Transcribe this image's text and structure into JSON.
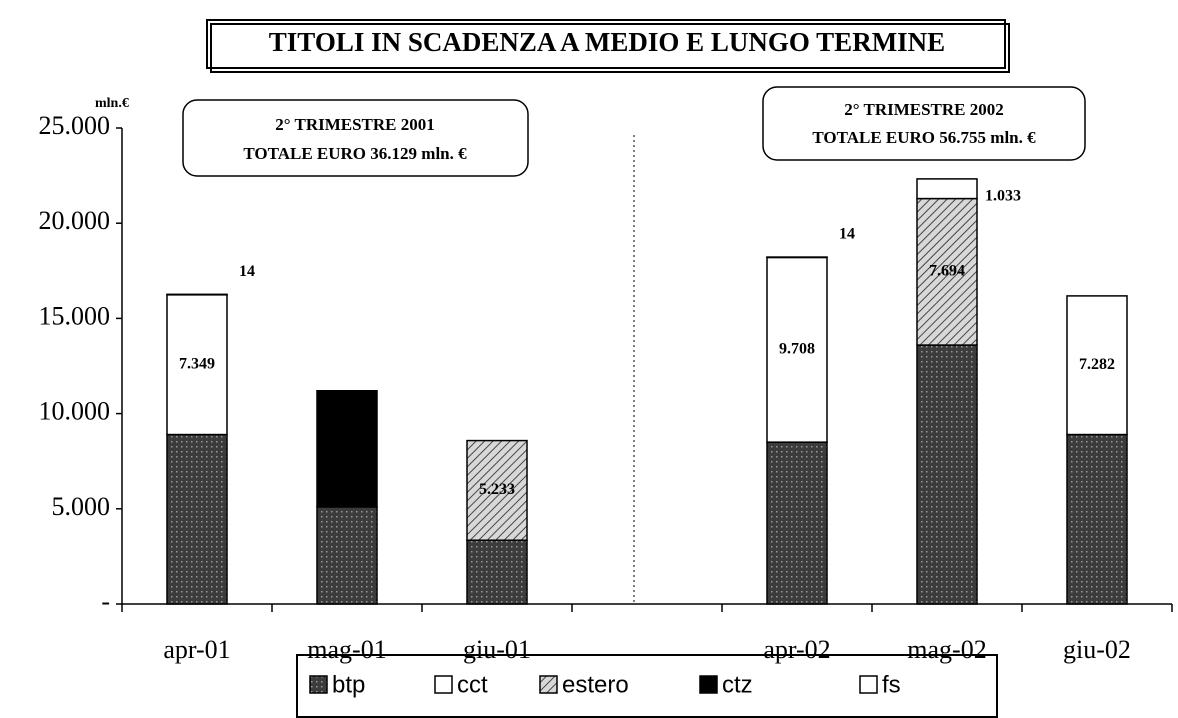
{
  "chart_data": {
    "type": "stacked-bar",
    "title": "TITOLI IN SCADENZA A MEDIO E LUNGO TERMINE",
    "y_unit_label": "mln.€",
    "annotations": [
      {
        "line1": "2° TRIMESTRE 2001",
        "line2": "TOTALE EURO  36.129 mln. €"
      },
      {
        "line1": "2° TRIMESTRE 2002",
        "line2": "TOTALE EURO   56.755 mln. €"
      }
    ],
    "categories": [
      "apr-01",
      "mag-01",
      "giu-01",
      null,
      "apr-02",
      "mag-02",
      "giu-02"
    ],
    "series": [
      {
        "name": "btp",
        "color": "#4a4a4a",
        "values": [
          8900,
          5100,
          3350,
          null,
          8500,
          13600,
          8900
        ],
        "value_labels": [
          null,
          null,
          null,
          null,
          null,
          null,
          null
        ]
      },
      {
        "name": "cct",
        "color": "#ffffff",
        "values": [
          7349,
          null,
          null,
          null,
          9708,
          null,
          7282
        ],
        "value_labels": [
          "7.349",
          null,
          null,
          null,
          "9.708",
          null,
          "7.282"
        ]
      },
      {
        "name": "estero",
        "color": "#b0b0b0",
        "values": [
          null,
          null,
          5233,
          null,
          null,
          7694,
          null
        ],
        "value_labels": [
          null,
          null,
          "5.233",
          null,
          null,
          "7.694",
          null
        ]
      },
      {
        "name": "ctz",
        "color": "#000000",
        "values": [
          null,
          6100,
          null,
          null,
          null,
          null,
          null
        ],
        "value_labels": [
          null,
          null,
          null,
          null,
          null,
          null,
          null
        ]
      },
      {
        "name": "fs",
        "color": "#ffffff",
        "values": [
          14,
          null,
          null,
          null,
          14,
          1033,
          null
        ],
        "value_labels": [
          "14",
          null,
          null,
          null,
          "14",
          "1.033",
          null
        ]
      }
    ],
    "ylim": [
      0,
      25000
    ],
    "yticks": [
      {
        "value": 0,
        "label": "-"
      },
      {
        "value": 5000,
        "label": "5.000"
      },
      {
        "value": 10000,
        "label": "10.000"
      },
      {
        "value": 15000,
        "label": "15.000"
      },
      {
        "value": 20000,
        "label": "20.000"
      },
      {
        "value": 25000,
        "label": "25.000"
      }
    ]
  }
}
